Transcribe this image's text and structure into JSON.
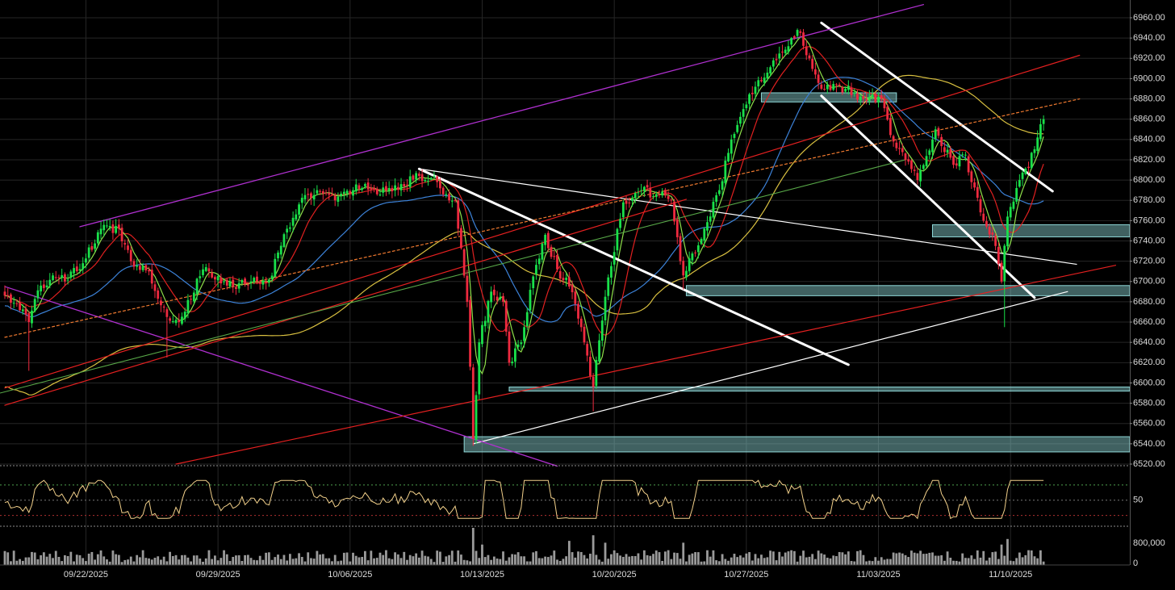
{
  "chart_data": {
    "type": "candlestick",
    "colors": {
      "background": "#000000",
      "grid": "#262626",
      "up": "#19e04a",
      "down": "#ee2a3f",
      "ma_fast": "#8ee04a",
      "ma_mid": "#e02020",
      "ma_slow": "#3c82d8",
      "ma_long": "#d9c040",
      "ma_extra": "#58a848",
      "trendline": "#ffffff",
      "channel": "#e52020",
      "purple_line": "#b030d0",
      "zone_fill": "#8fd8d8",
      "rsi_line": "#f2d08a",
      "volume": "#9a9a9a",
      "axis_text": "#dcdcdc"
    },
    "price_axis": {
      "min": 6520,
      "max": 6960,
      "ticks": [
        "6960.00",
        "6940.00",
        "6920.00",
        "6900.00",
        "6880.00",
        "6860.00",
        "6840.00",
        "6820.00",
        "6800.00",
        "6780.00",
        "6760.00",
        "6740.00",
        "6720.00",
        "6700.00",
        "6680.00",
        "6660.00",
        "6640.00",
        "6620.00",
        "6600.00",
        "6580.00",
        "6560.00",
        "6540.00",
        "6520.00"
      ]
    },
    "rsi_axis": {
      "tick": "50",
      "guides": [
        70,
        50,
        30
      ]
    },
    "volume_axis": {
      "ticks": [
        "800,000",
        "0"
      ]
    },
    "date_labels": [
      {
        "label": "09/22/2025",
        "bar": 27
      },
      {
        "label": "09/29/2025",
        "bar": 71
      },
      {
        "label": "10/06/2025",
        "bar": 115
      },
      {
        "label": "10/13/2025",
        "bar": 159
      },
      {
        "label": "10/20/2025",
        "bar": 203
      },
      {
        "label": "10/27/2025",
        "bar": 247
      },
      {
        "label": "11/03/2025",
        "bar": 291
      },
      {
        "label": "11/10/2025",
        "bar": 335
      }
    ],
    "anchors": [
      [
        0,
        6686
      ],
      [
        4,
        6678
      ],
      [
        8,
        6660
      ],
      [
        12,
        6696
      ],
      [
        16,
        6706
      ],
      [
        20,
        6700
      ],
      [
        26,
        6718
      ],
      [
        32,
        6752
      ],
      [
        38,
        6752
      ],
      [
        42,
        6720
      ],
      [
        48,
        6710
      ],
      [
        54,
        6665
      ],
      [
        58,
        6660
      ],
      [
        66,
        6712
      ],
      [
        74,
        6696
      ],
      [
        82,
        6700
      ],
      [
        88,
        6702
      ],
      [
        94,
        6752
      ],
      [
        98,
        6776
      ],
      [
        104,
        6790
      ],
      [
        110,
        6780
      ],
      [
        116,
        6790
      ],
      [
        120,
        6796
      ],
      [
        124,
        6786
      ],
      [
        132,
        6796
      ],
      [
        138,
        6804
      ],
      [
        144,
        6798
      ],
      [
        148,
        6780
      ],
      [
        150,
        6780
      ],
      [
        154,
        6680
      ],
      [
        156,
        6545
      ],
      [
        158,
        6640
      ],
      [
        162,
        6690
      ],
      [
        166,
        6680
      ],
      [
        168,
        6620
      ],
      [
        172,
        6640
      ],
      [
        176,
        6705
      ],
      [
        180,
        6746
      ],
      [
        184,
        6712
      ],
      [
        188,
        6695
      ],
      [
        192,
        6655
      ],
      [
        196,
        6596
      ],
      [
        200,
        6685
      ],
      [
        206,
        6778
      ],
      [
        212,
        6790
      ],
      [
        218,
        6785
      ],
      [
        222,
        6780
      ],
      [
        226,
        6706
      ],
      [
        232,
        6742
      ],
      [
        238,
        6790
      ],
      [
        242,
        6840
      ],
      [
        246,
        6870
      ],
      [
        250,
        6892
      ],
      [
        256,
        6918
      ],
      [
        262,
        6940
      ],
      [
        264,
        6948
      ],
      [
        268,
        6920
      ],
      [
        272,
        6890
      ],
      [
        280,
        6890
      ],
      [
        286,
        6880
      ],
      [
        292,
        6880
      ],
      [
        296,
        6838
      ],
      [
        300,
        6820
      ],
      [
        304,
        6800
      ],
      [
        310,
        6850
      ],
      [
        316,
        6815
      ],
      [
        320,
        6825
      ],
      [
        322,
        6798
      ],
      [
        326,
        6760
      ],
      [
        330,
        6735
      ],
      [
        332,
        6700
      ],
      [
        334,
        6764
      ],
      [
        338,
        6800
      ],
      [
        341,
        6812
      ],
      [
        344,
        6842
      ],
      [
        346,
        6860
      ]
    ],
    "zones": [
      {
        "bar1": 153,
        "bar2": 380,
        "y_top": 6547,
        "y_bot": 6532
      },
      {
        "bar1": 168,
        "bar2": 380,
        "y_top": 6596,
        "y_bot": 6592
      },
      {
        "bar1": 227,
        "bar2": 380,
        "y_top": 6696,
        "y_bot": 6686
      },
      {
        "bar1": 309,
        "bar2": 380,
        "y_top": 6756,
        "y_bot": 6744
      },
      {
        "bar1": 252,
        "bar2": 297,
        "y_top": 6886,
        "y_bot": 6877
      }
    ],
    "lines": [
      {
        "kind": "trendline",
        "width": 3,
        "p1": [
          138,
          6811
        ],
        "p2": [
          281,
          6618
        ]
      },
      {
        "kind": "trendline",
        "width": 1.2,
        "p1": [
          138,
          6811
        ],
        "p2": [
          357,
          6717
        ]
      },
      {
        "kind": "trendline",
        "width": 1.2,
        "p1": [
          156,
          6540
        ],
        "p2": [
          354,
          6690
        ]
      },
      {
        "kind": "trendline",
        "width": 3,
        "p1": [
          272,
          6955
        ],
        "p2": [
          349,
          6789
        ]
      },
      {
        "kind": "trendline",
        "width": 3,
        "p1": [
          272,
          6883
        ],
        "p2": [
          343,
          6684
        ]
      },
      {
        "kind": "purple_line",
        "width": 1.3,
        "p1": [
          25,
          6754
        ],
        "p2": [
          306,
          6973
        ]
      },
      {
        "kind": "purple_line",
        "width": 1.3,
        "p1": [
          0,
          6695
        ],
        "p2": [
          184,
          6518
        ]
      },
      {
        "kind": "channel",
        "width": 1.2,
        "p1": [
          0,
          6595
        ],
        "p2": [
          358,
          6923
        ]
      },
      {
        "kind": "channel",
        "width": 1.2,
        "p1": [
          0,
          6578
        ],
        "p2": [
          227,
          6781
        ]
      },
      {
        "kind": "channel",
        "width": 1.2,
        "p1": [
          57,
          6520
        ],
        "p2": [
          370,
          6716
        ]
      },
      {
        "kind": "channel_dotted",
        "width": 1.2,
        "p1": [
          0,
          6645
        ],
        "p2": [
          358,
          6880
        ]
      }
    ],
    "rsi_baseline_bars": [
      0,
      20,
      40,
      60,
      80,
      100,
      120,
      140,
      160,
      180,
      200,
      220,
      240,
      260,
      280,
      300,
      320,
      340
    ],
    "volume_spikes": [
      [
        156,
        1
      ],
      [
        159,
        0.55
      ],
      [
        188,
        0.65
      ],
      [
        196,
        0.8
      ],
      [
        200,
        0.6
      ],
      [
        226,
        0.6
      ],
      [
        332,
        0.55
      ],
      [
        334,
        0.7
      ]
    ]
  }
}
